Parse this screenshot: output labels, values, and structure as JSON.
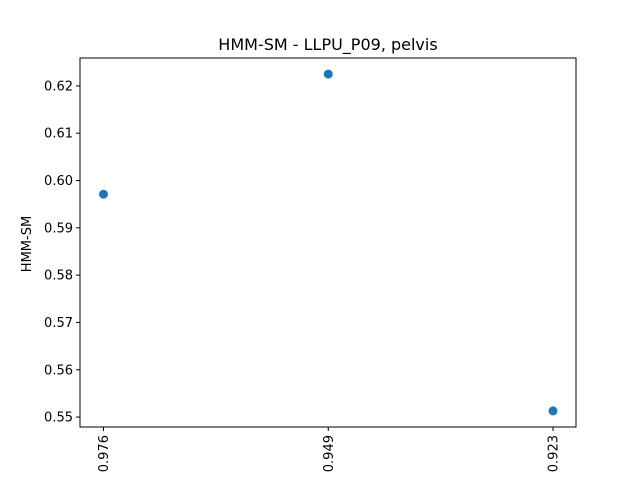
{
  "chart_data": {
    "type": "scatter",
    "title": "HMM-SM - LLPU_P09, pelvis",
    "xlabel": "",
    "ylabel": "HMM-SM",
    "x_categories": [
      "0.976",
      "0.949",
      "0.923"
    ],
    "points": [
      {
        "x": "0.976",
        "y": 0.5971
      },
      {
        "x": "0.949",
        "y": 0.6225
      },
      {
        "x": "0.923",
        "y": 0.5513
      }
    ],
    "yticks": [
      0.55,
      0.56,
      0.57,
      0.58,
      0.59,
      0.6,
      0.61,
      0.62
    ],
    "ytick_labels": [
      "0.55",
      "0.56",
      "0.57",
      "0.58",
      "0.59",
      "0.60",
      "0.61",
      "0.62"
    ],
    "ylim": [
      0.5479,
      0.6259
    ],
    "grid": false,
    "marker_color": "#1f77b4"
  }
}
